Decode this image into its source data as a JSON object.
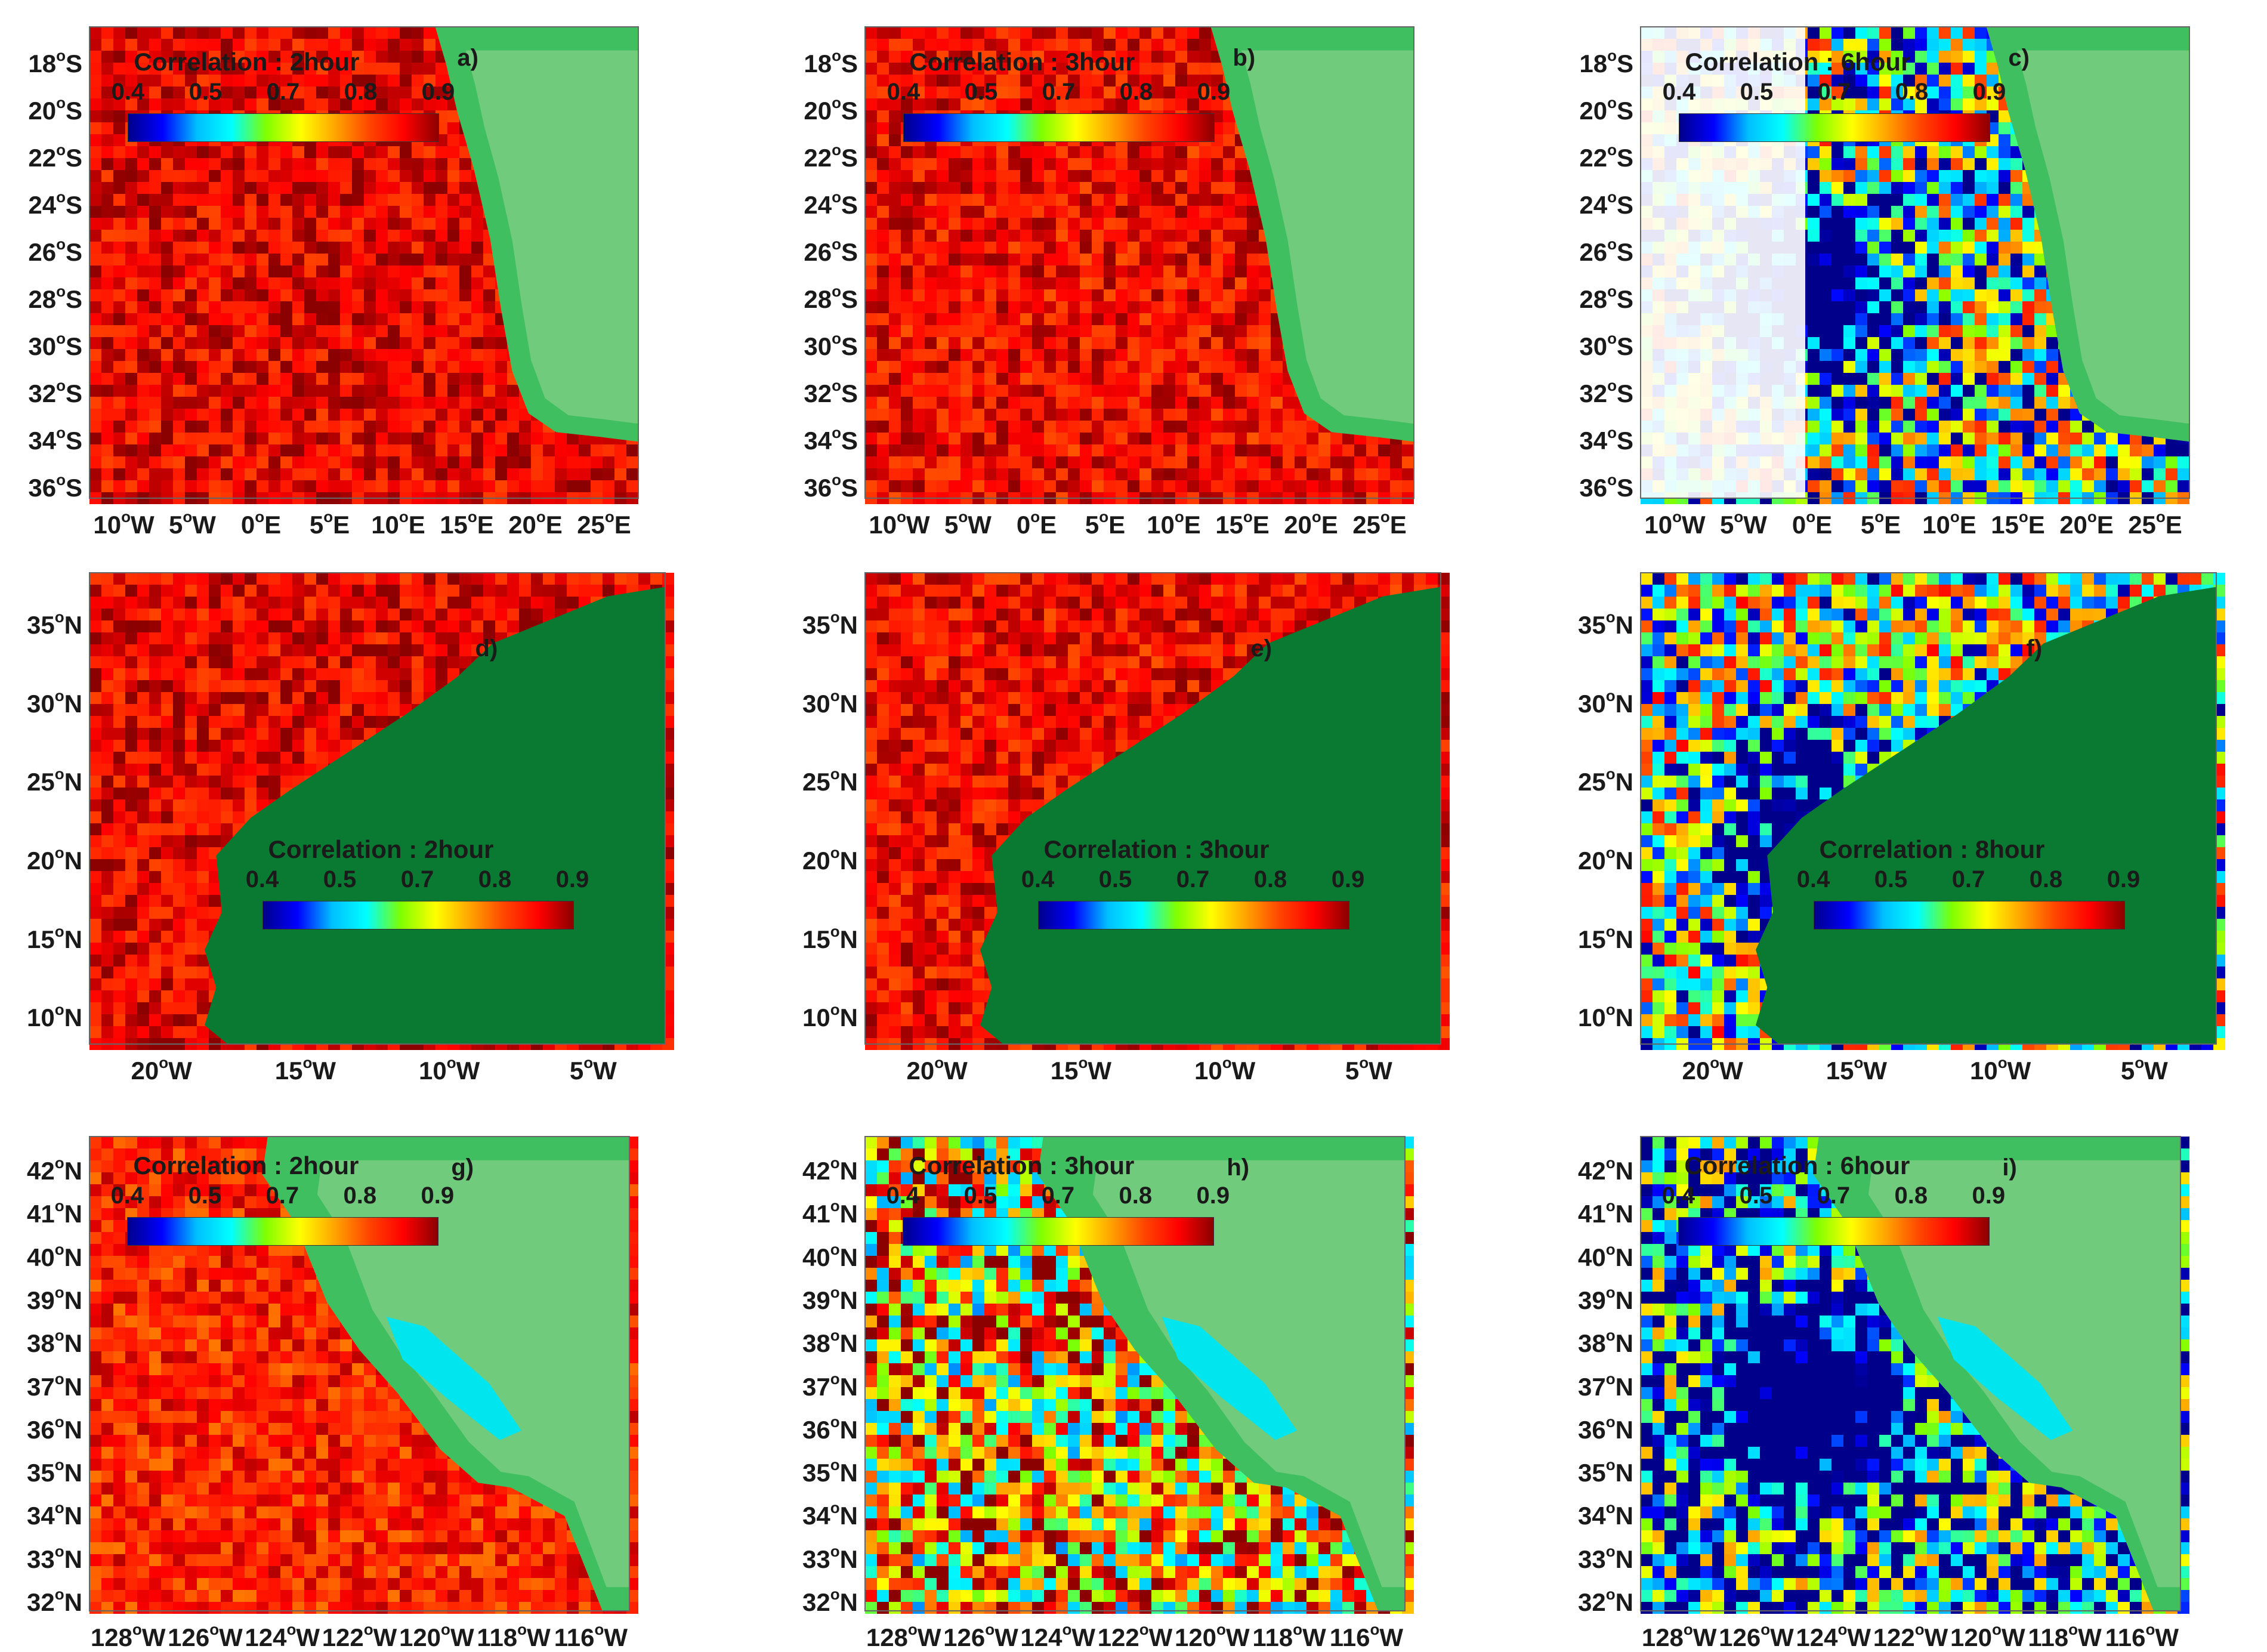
{
  "figure": {
    "colormap": [
      "#00008b",
      "#0000ff",
      "#00bfff",
      "#00ffff",
      "#7fff00",
      "#ffff00",
      "#ffa500",
      "#ff4500",
      "#ff0000",
      "#8b0000"
    ],
    "land_colors": [
      "#0a7a32",
      "#3fbf5f",
      "#b0d9a0",
      "#d9c9a0"
    ],
    "colorbar_ticks": [
      "0.4",
      "0.5",
      "0.7",
      "0.8",
      "0.9"
    ],
    "regions": {
      "benguela": {
        "lat_ticks": [
          "18°S",
          "20°S",
          "22°S",
          "24°S",
          "26°S",
          "28°S",
          "30°S",
          "32°S",
          "34°S",
          "36°S"
        ],
        "lon_ticks": [
          "10°W",
          "5°W",
          "0°E",
          "5°E",
          "10°E",
          "15°E",
          "20°E",
          "25°E"
        ]
      },
      "canary": {
        "lat_ticks": [
          "35°N",
          "30°N",
          "25°N",
          "20°N",
          "15°N",
          "10°N"
        ],
        "lon_ticks": [
          "20°W",
          "15°W",
          "10°W",
          "5°W"
        ]
      },
      "california": {
        "lat_ticks": [
          "42°N",
          "41°N",
          "40°N",
          "39°N",
          "38°N",
          "37°N",
          "36°N",
          "35°N",
          "34°N",
          "33°N",
          "32°N"
        ],
        "lon_ticks": [
          "128°W",
          "126°W",
          "124°W",
          "122°W",
          "120°W",
          "118°W",
          "116°W"
        ]
      }
    },
    "panels": [
      {
        "tag": "a)",
        "region": "benguela",
        "colorbar_title": "Correlation : 2hour",
        "correlation_level": 0.85
      },
      {
        "tag": "b)",
        "region": "benguela",
        "colorbar_title": "Correlation : 3hour",
        "correlation_level": 0.84
      },
      {
        "tag": "c)",
        "region": "benguela",
        "colorbar_title": "Correlation : 6hour",
        "correlation_level": 0.6
      },
      {
        "tag": "d)",
        "region": "canary",
        "colorbar_title": "Correlation : 2hour",
        "correlation_level": 0.85
      },
      {
        "tag": "e)",
        "region": "canary",
        "colorbar_title": "Correlation : 3hour",
        "correlation_level": 0.84
      },
      {
        "tag": "f)",
        "region": "canary",
        "colorbar_title": "Correlation : 8hour",
        "correlation_level": 0.62
      },
      {
        "tag": "g)",
        "region": "california",
        "colorbar_title": "Correlation : 2hour",
        "correlation_level": 0.82
      },
      {
        "tag": "h)",
        "region": "california",
        "colorbar_title": "Correlation : 3hour",
        "correlation_level": 0.72
      },
      {
        "tag": "i)",
        "region": "california",
        "colorbar_title": "Correlation : 6hour",
        "correlation_level": 0.52
      }
    ]
  }
}
